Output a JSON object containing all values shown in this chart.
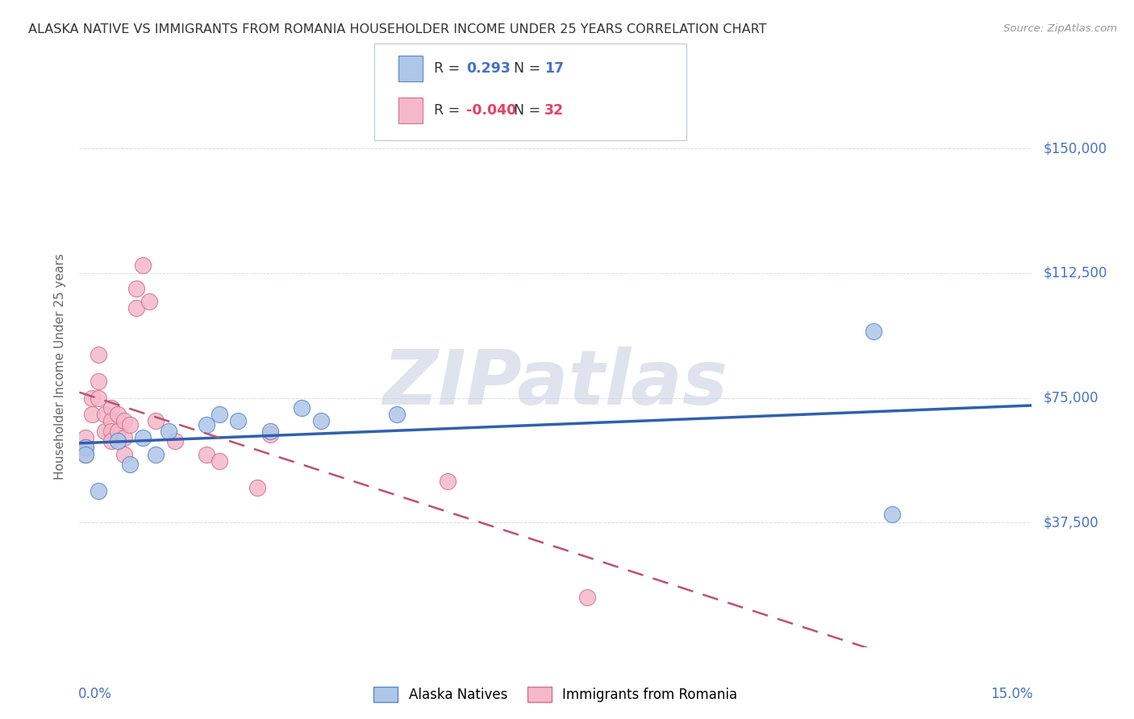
{
  "title": "ALASKA NATIVE VS IMMIGRANTS FROM ROMANIA HOUSEHOLDER INCOME UNDER 25 YEARS CORRELATION CHART",
  "source": "Source: ZipAtlas.com",
  "ylabel": "Householder Income Under 25 years",
  "ytick_labels": [
    "$37,500",
    "$75,000",
    "$112,500",
    "$150,000"
  ],
  "ytick_values": [
    37500,
    75000,
    112500,
    150000
  ],
  "ymin": 0,
  "ymax": 168750,
  "xmin": 0.0,
  "xmax": 0.15,
  "r_alaska": "0.293",
  "n_alaska": "17",
  "r_romania": "-0.040",
  "n_romania": "32",
  "alaska_fill_color": "#aec6e8",
  "alaska_edge_color": "#5588cc",
  "alaska_line_color": "#3060b0",
  "romania_fill_color": "#f4b8c8",
  "romania_edge_color": "#d07090",
  "romania_line_color": "#c05070",
  "alaska_x": [
    0.001,
    0.001,
    0.003,
    0.006,
    0.008,
    0.01,
    0.012,
    0.014,
    0.02,
    0.022,
    0.025,
    0.03,
    0.035,
    0.038,
    0.05,
    0.125,
    0.128
  ],
  "alaska_y": [
    60000,
    58000,
    47000,
    62000,
    55000,
    63000,
    58000,
    65000,
    67000,
    70000,
    68000,
    65000,
    72000,
    68000,
    70000,
    95000,
    40000
  ],
  "romania_x": [
    0.001,
    0.001,
    0.001,
    0.002,
    0.002,
    0.003,
    0.003,
    0.003,
    0.004,
    0.004,
    0.005,
    0.005,
    0.005,
    0.005,
    0.006,
    0.006,
    0.007,
    0.007,
    0.007,
    0.008,
    0.009,
    0.009,
    0.01,
    0.011,
    0.012,
    0.015,
    0.02,
    0.022,
    0.028,
    0.03,
    0.058,
    0.08
  ],
  "romania_y": [
    63000,
    60000,
    58000,
    75000,
    70000,
    88000,
    80000,
    75000,
    70000,
    65000,
    72000,
    68000,
    65000,
    62000,
    70000,
    65000,
    68000,
    63000,
    58000,
    67000,
    102000,
    108000,
    115000,
    104000,
    68000,
    62000,
    58000,
    56000,
    48000,
    64000,
    50000,
    15000
  ],
  "watermark_text": "ZIPatlas",
  "background_color": "#ffffff",
  "grid_color": "#d5dce8",
  "title_color": "#333333",
  "axis_label_color": "#666666",
  "ytick_color": "#4472c4",
  "xtick_color": "#4472c4"
}
